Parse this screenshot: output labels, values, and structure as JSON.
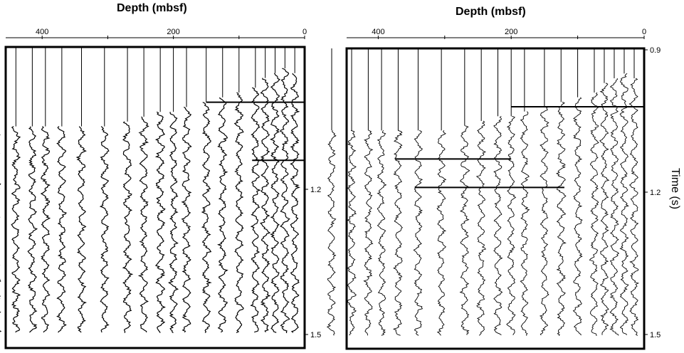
{
  "chart_data": [
    {
      "type": "line",
      "panel": "left",
      "title": "Depth (mbsf)",
      "x_axis": {
        "label": "Depth (mbsf)",
        "position": "top",
        "reversed": true,
        "ticks": [
          400,
          200,
          0
        ],
        "range": [
          500,
          0
        ]
      },
      "y_axis": {
        "label": "",
        "ticks": [
          1.2,
          1.5
        ],
        "tick_labels": [
          "1.2",
          "1.5"
        ],
        "range": [
          0.9,
          1.5
        ],
        "reversed": true
      },
      "trace_depths": [
        470,
        440,
        415,
        395,
        370,
        340,
        305,
        270,
        245,
        220,
        200,
        180,
        150,
        125,
        100,
        75,
        60,
        45,
        30,
        15
      ],
      "trace_start_times": [
        1.07,
        1.07,
        1.07,
        1.07,
        1.07,
        1.07,
        1.07,
        1.06,
        1.05,
        1.04,
        1.04,
        1.03,
        1.02,
        1.01,
        1.0,
        0.99,
        0.97,
        0.96,
        0.95,
        0.96
      ],
      "first_arrival_events": [
        {
          "time": 1.02,
          "depth_range": [
            0,
            150
          ]
        },
        {
          "time": 1.14,
          "depth_range": [
            0,
            80
          ]
        }
      ],
      "grid": false
    },
    {
      "type": "line",
      "panel": "right",
      "title": "Depth (mbsf)",
      "x_axis": {
        "label": "Depth (mbsf)",
        "position": "top",
        "reversed": true,
        "ticks": [
          400,
          200,
          0
        ],
        "range": [
          500,
          0
        ]
      },
      "y_axis": {
        "label": "Time (s)",
        "position": "right",
        "ticks": [
          0.9,
          1.2,
          1.5
        ],
        "tick_labels": [
          "0.9",
          "1.2",
          "1.5"
        ],
        "range": [
          0.9,
          1.5
        ],
        "reversed": true
      },
      "trace_depths": [
        470,
        440,
        415,
        395,
        370,
        340,
        305,
        270,
        245,
        220,
        200,
        180,
        150,
        125,
        100,
        75,
        60,
        45,
        30,
        15
      ],
      "trace_start_times": [
        1.07,
        1.07,
        1.07,
        1.07,
        1.07,
        1.07,
        1.07,
        1.06,
        1.05,
        1.04,
        1.04,
        1.03,
        1.02,
        1.01,
        1.0,
        0.99,
        0.97,
        0.96,
        0.95,
        0.96
      ],
      "horizons": [
        {
          "time": 1.02,
          "depth_range": [
            0,
            200
          ]
        },
        {
          "time": 1.13,
          "depth_range": [
            200,
            375
          ]
        },
        {
          "time": 1.19,
          "depth_range": [
            120,
            345
          ]
        }
      ],
      "grid": false
    }
  ]
}
